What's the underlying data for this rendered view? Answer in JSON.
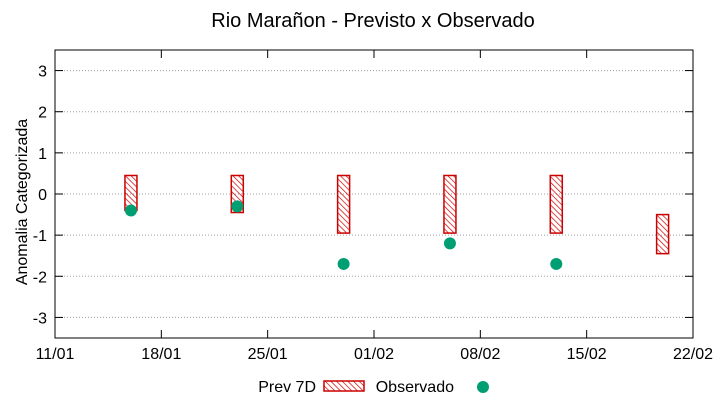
{
  "chart_data": {
    "type": "floating-bar-and-scatter",
    "title": "Rio Marañon - Previsto x Observado",
    "xlabel": "",
    "ylabel": "Anomalia Categorizada",
    "ylim": [
      -3.5,
      3.5
    ],
    "yticks": [
      -3,
      -2,
      -1,
      0,
      1,
      2,
      3
    ],
    "xlim_days": [
      0,
      42
    ],
    "xticks": [
      {
        "day": 0,
        "label": "11/01"
      },
      {
        "day": 7,
        "label": "18/01"
      },
      {
        "day": 14,
        "label": "25/01"
      },
      {
        "day": 21,
        "label": "01/02"
      },
      {
        "day": 28,
        "label": "08/02"
      },
      {
        "day": 35,
        "label": "15/02"
      },
      {
        "day": 42,
        "label": "22/02"
      }
    ],
    "grid": true,
    "legend_placement": "bottom-center",
    "series": [
      {
        "name": "Prev 7D",
        "kind": "range-bar",
        "color": "#cc0000",
        "hatch": true,
        "points": [
          {
            "day": 5,
            "low": -0.4,
            "high": 0.45
          },
          {
            "day": 12,
            "low": -0.45,
            "high": 0.45
          },
          {
            "day": 19,
            "low": -0.95,
            "high": 0.45
          },
          {
            "day": 26,
            "low": -0.95,
            "high": 0.45
          },
          {
            "day": 33,
            "low": -0.95,
            "high": 0.45
          },
          {
            "day": 40,
            "low": -1.45,
            "high": -0.5
          }
        ]
      },
      {
        "name": "Observado",
        "kind": "point",
        "color": "#009e73",
        "points": [
          {
            "day": 5,
            "value": -0.4
          },
          {
            "day": 12,
            "value": -0.3
          },
          {
            "day": 19,
            "value": -1.7
          },
          {
            "day": 26,
            "value": -1.2
          },
          {
            "day": 33,
            "value": -1.7
          }
        ]
      }
    ]
  }
}
